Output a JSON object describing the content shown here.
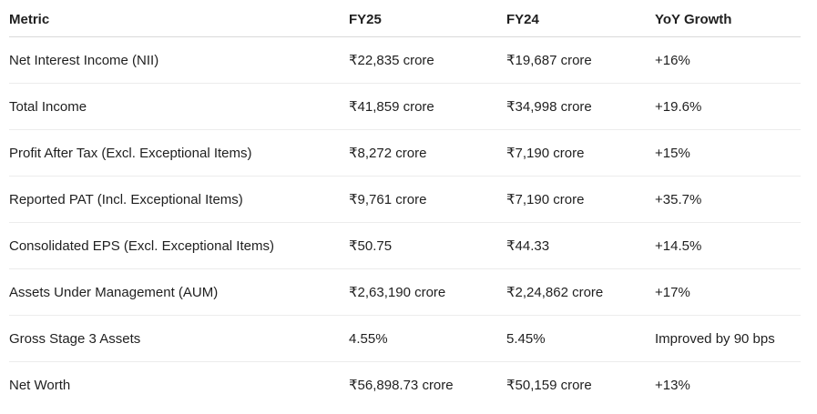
{
  "table": {
    "headers": [
      "Metric",
      "FY25",
      "FY24",
      "YoY Growth"
    ],
    "rows": [
      [
        "Net Interest Income (NII)",
        "₹22,835 crore",
        "₹19,687 crore",
        "+16%"
      ],
      [
        "Total Income",
        "₹41,859 crore",
        "₹34,998 crore",
        "+19.6%"
      ],
      [
        "Profit After Tax (Excl. Exceptional Items)",
        "₹8,272 crore",
        "₹7,190 crore",
        "+15%"
      ],
      [
        "Reported PAT (Incl. Exceptional Items)",
        "₹9,761 crore",
        "₹7,190 crore",
        "+35.7%"
      ],
      [
        "Consolidated EPS (Excl. Exceptional Items)",
        "₹50.75",
        "₹44.33",
        "+14.5%"
      ],
      [
        "Assets Under Management (AUM)",
        "₹2,63,190 crore",
        "₹2,24,862 crore",
        "+17%"
      ],
      [
        "Gross Stage 3 Assets",
        "4.55%",
        "5.45%",
        "Improved by 90 bps"
      ],
      [
        "Net Worth",
        "₹56,898.73 crore",
        "₹50,159 crore",
        "+13%"
      ]
    ]
  }
}
